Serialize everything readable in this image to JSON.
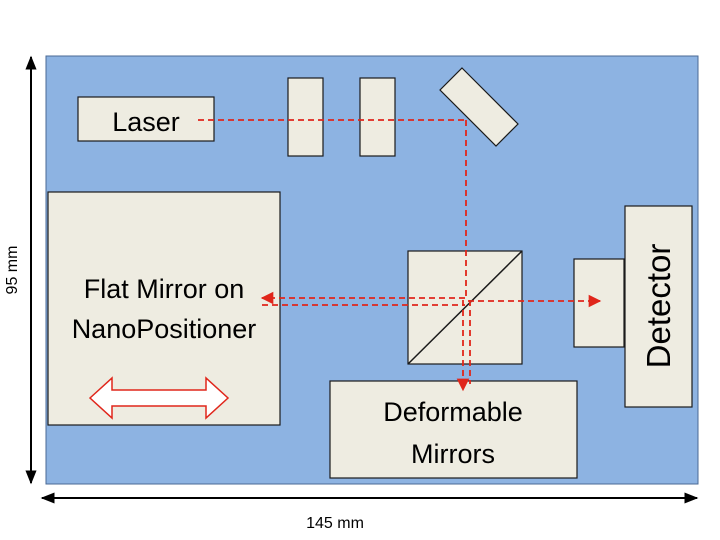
{
  "labels": {
    "laser": "Laser",
    "flat_mirror_line1": "Flat Mirror on",
    "flat_mirror_line2": "NanoPositioner",
    "deformable_line1": "Deformable",
    "deformable_line2": "Mirrors",
    "detector": "Detector"
  },
  "dimensions": {
    "height": "95 mm",
    "width": "145 mm"
  },
  "colors": {
    "plate": "#8db3e2",
    "component": "#eeece1",
    "beam": "#e0261b",
    "motion_arrow": "#e0261b"
  }
}
